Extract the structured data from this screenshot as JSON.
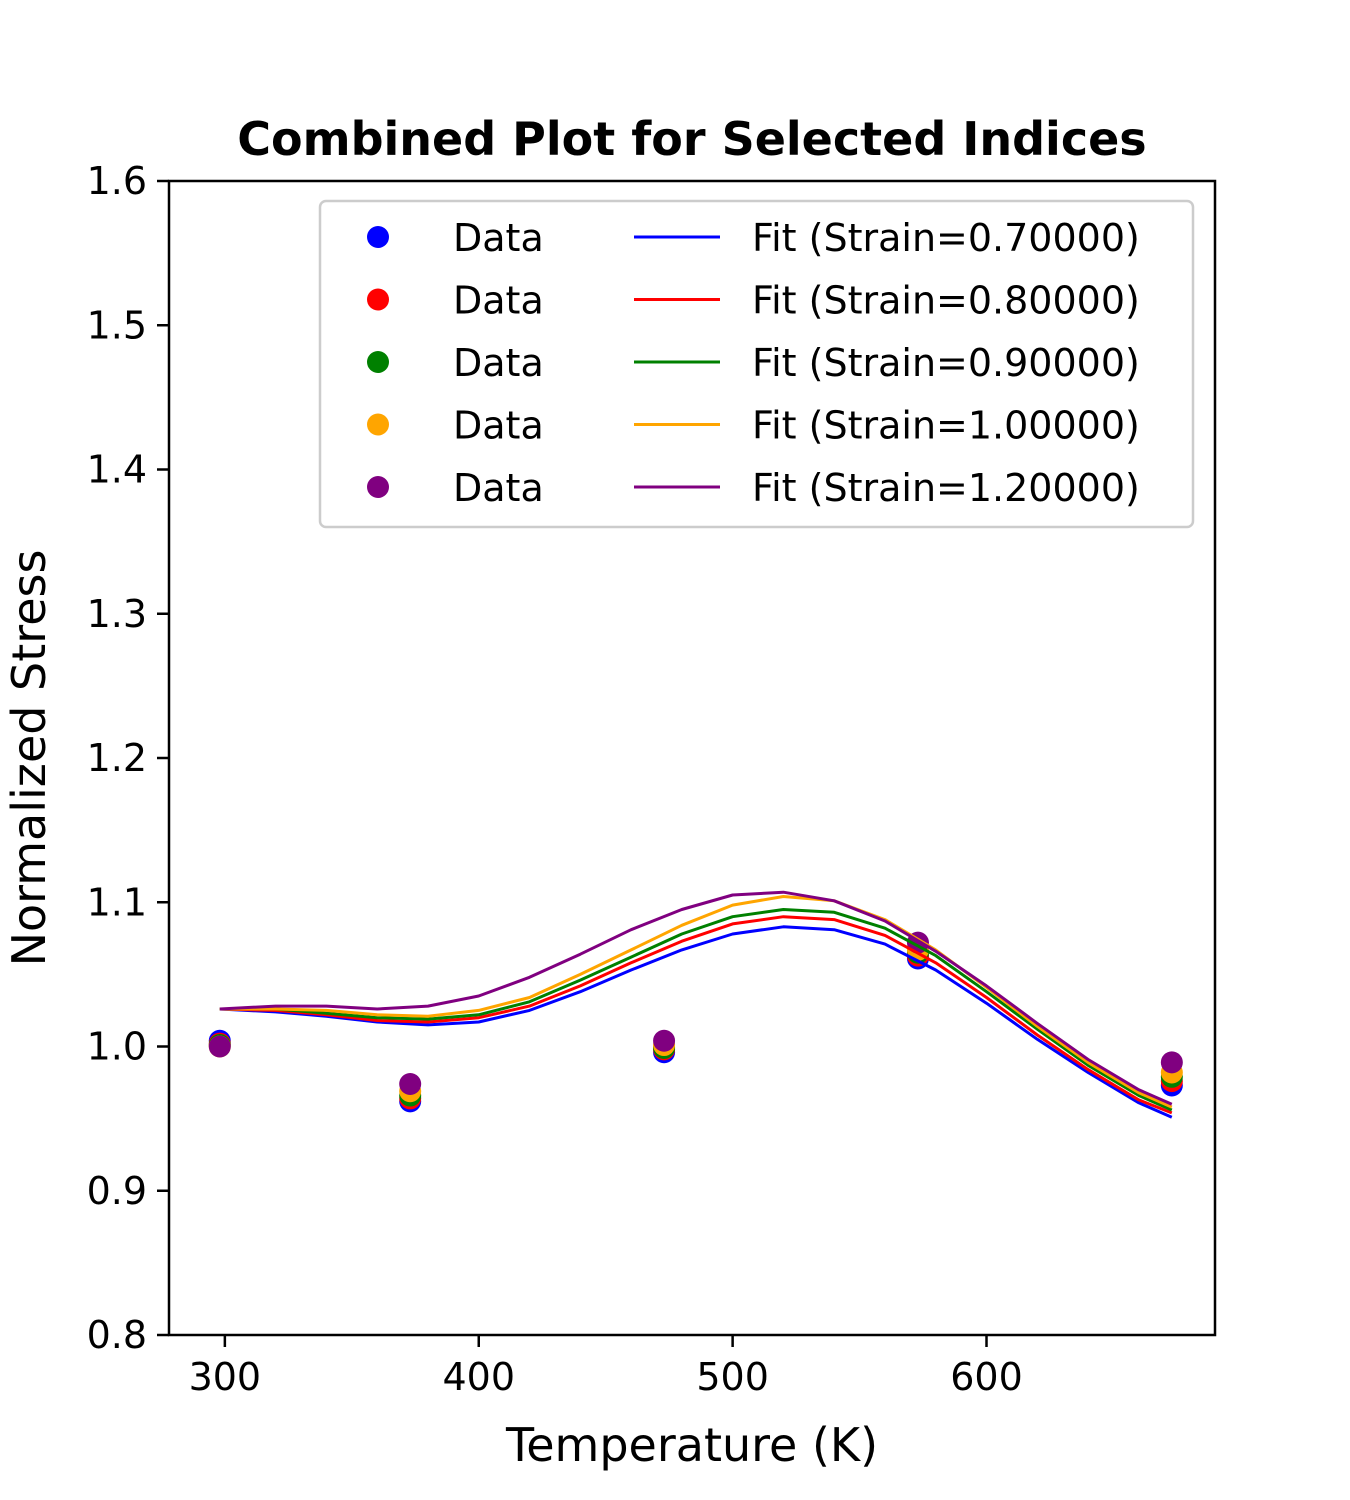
{
  "chart_data": {
    "type": "scatter",
    "title": "Combined Plot for Selected Indices",
    "xlabel": "Temperature (K)",
    "ylabel": "Normalized Stress",
    "xlim": [
      278,
      690
    ],
    "ylim": [
      0.8,
      1.6
    ],
    "x_ticks": [
      "300",
      "400",
      "500",
      "600"
    ],
    "y_ticks": [
      "0.8",
      "0.9",
      "1.0",
      "1.1",
      "1.2",
      "1.3",
      "1.4",
      "1.5",
      "1.6"
    ],
    "grid": false,
    "legend_position": "top-right",
    "x": [
      298,
      373,
      473,
      573,
      673
    ],
    "series": [
      {
        "data_label": "Data",
        "fit_label": "Fit (Strain=0.70000)",
        "color": "#0000ff",
        "points": [
          1.004,
          0.962,
          0.996,
          1.061,
          0.973
        ],
        "fit": {
          "x": [
            298,
            320,
            340,
            360,
            380,
            400,
            420,
            440,
            460,
            480,
            500,
            520,
            540,
            560,
            580,
            600,
            620,
            640,
            660,
            673
          ],
          "y": [
            1.026,
            1.024,
            1.021,
            1.017,
            1.015,
            1.017,
            1.025,
            1.038,
            1.053,
            1.067,
            1.078,
            1.083,
            1.081,
            1.071,
            1.053,
            1.03,
            1.005,
            0.982,
            0.961,
            0.951
          ]
        }
      },
      {
        "data_label": "Data",
        "fit_label": "Fit (Strain=0.80000)",
        "color": "#ff0000",
        "points": [
          1.002,
          0.964,
          0.998,
          1.063,
          0.976
        ],
        "fit": {
          "x": [
            298,
            320,
            340,
            360,
            380,
            400,
            420,
            440,
            460,
            480,
            500,
            520,
            540,
            560,
            580,
            600,
            620,
            640,
            660,
            673
          ],
          "y": [
            1.026,
            1.025,
            1.022,
            1.018,
            1.017,
            1.02,
            1.028,
            1.042,
            1.058,
            1.073,
            1.085,
            1.09,
            1.088,
            1.077,
            1.058,
            1.034,
            1.008,
            0.984,
            0.963,
            0.954
          ]
        }
      },
      {
        "data_label": "Data",
        "fit_label": "Fit (Strain=0.90000)",
        "color": "#008000",
        "points": [
          1.001,
          0.966,
          0.999,
          1.065,
          0.979
        ],
        "fit": {
          "x": [
            298,
            320,
            340,
            360,
            380,
            400,
            420,
            440,
            460,
            480,
            500,
            520,
            540,
            560,
            580,
            600,
            620,
            640,
            660,
            673
          ],
          "y": [
            1.026,
            1.026,
            1.023,
            1.02,
            1.019,
            1.022,
            1.031,
            1.046,
            1.062,
            1.078,
            1.09,
            1.095,
            1.093,
            1.082,
            1.063,
            1.038,
            1.012,
            0.987,
            0.966,
            0.956
          ]
        }
      },
      {
        "data_label": "Data",
        "fit_label": "Fit (Strain=1.00000)",
        "color": "#ffa500",
        "points": [
          1.0,
          0.969,
          1.001,
          1.067,
          0.982
        ],
        "fit": {
          "x": [
            298,
            320,
            340,
            360,
            380,
            400,
            420,
            440,
            460,
            480,
            500,
            520,
            540,
            560,
            580,
            600,
            620,
            640,
            660,
            673
          ],
          "y": [
            1.026,
            1.026,
            1.025,
            1.022,
            1.021,
            1.025,
            1.034,
            1.05,
            1.067,
            1.084,
            1.098,
            1.104,
            1.101,
            1.088,
            1.067,
            1.041,
            1.014,
            0.989,
            0.968,
            0.958
          ]
        }
      },
      {
        "data_label": "Data",
        "fit_label": "Fit (Strain=1.20000)",
        "color": "#800080",
        "points": [
          1.0,
          0.974,
          1.004,
          1.072,
          0.989
        ],
        "fit": {
          "x": [
            298,
            320,
            340,
            360,
            380,
            400,
            420,
            440,
            460,
            480,
            500,
            520,
            540,
            560,
            580,
            600,
            620,
            640,
            660,
            673
          ],
          "y": [
            1.026,
            1.028,
            1.028,
            1.026,
            1.028,
            1.035,
            1.048,
            1.064,
            1.081,
            1.095,
            1.105,
            1.107,
            1.101,
            1.087,
            1.066,
            1.042,
            1.016,
            0.991,
            0.97,
            0.96
          ]
        }
      }
    ]
  }
}
